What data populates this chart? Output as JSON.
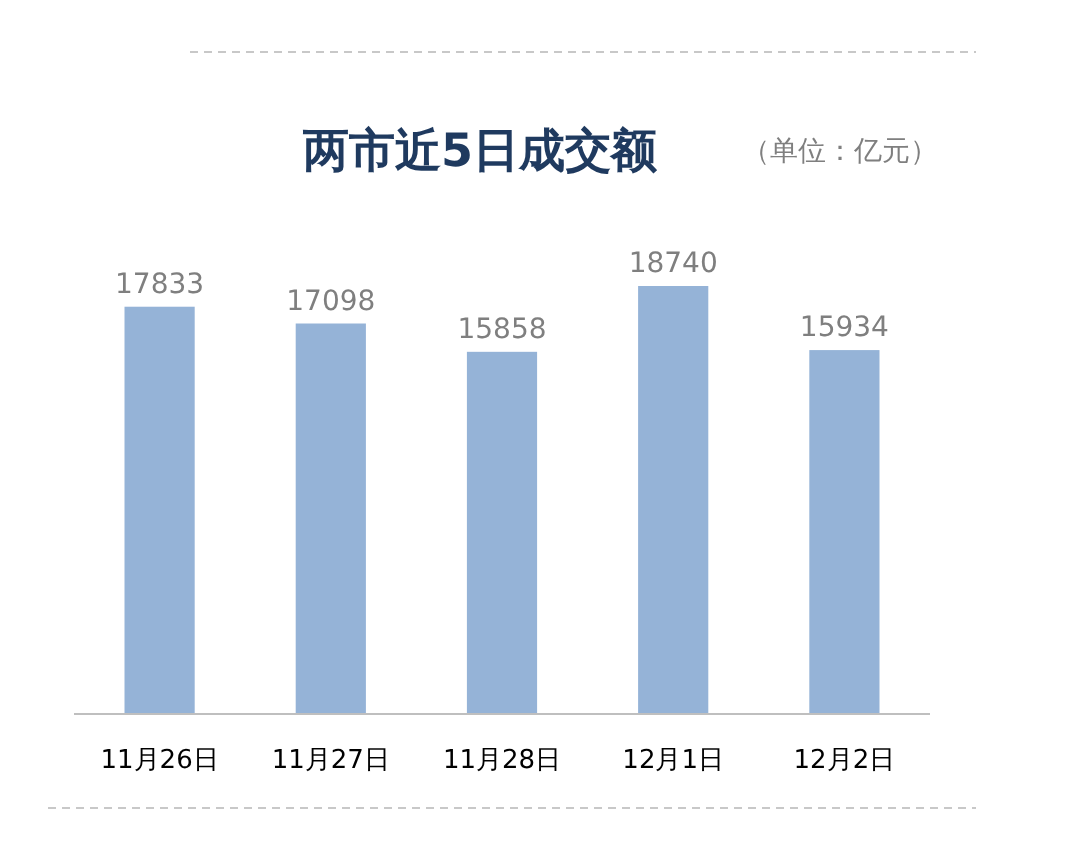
{
  "chart_data": {
    "type": "bar",
    "title": "两市近5日成交额",
    "annotations": [
      "（单位：亿元）"
    ],
    "categories": [
      "11月26日",
      "11月27日",
      "11月28日",
      "12月1日",
      "12月2日"
    ],
    "values": [
      17833,
      17098,
      15858,
      18740,
      15934
    ],
    "color": "#95b3d7",
    "data_labels": true
  }
}
